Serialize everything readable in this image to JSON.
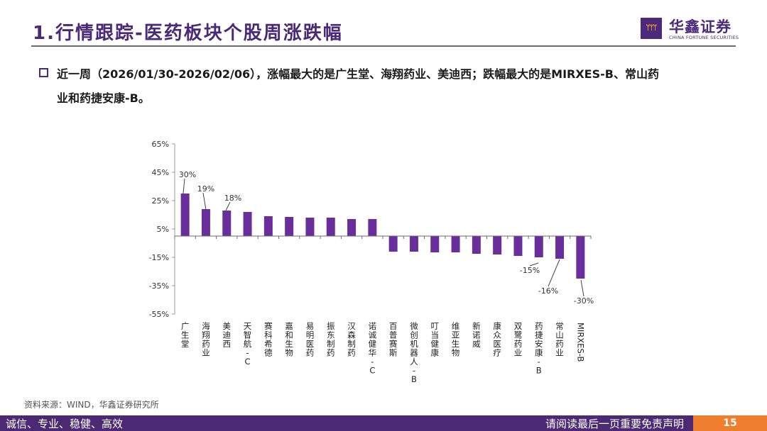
{
  "header": {
    "title": "1.行情跟踪-医药板块个股周涨跌幅",
    "logo_icon": "three-figures-logo-icon",
    "logo_mark": "ᛘᛘᛘ",
    "logo_cn": "华鑫证券",
    "logo_en": "CHINA FORTUNE SECURITIES"
  },
  "summary": {
    "bullet_icon": "hollow-square-bullet-icon",
    "text": "近一周（2026/01/30-2026/02/06），涨幅最大的是广生堂、海翔药业、美迪西；跌幅最大的是MIRXES-B、常山药业和药捷安康-B。"
  },
  "chart_data": {
    "type": "bar",
    "title": "",
    "xlabel": "",
    "ylabel": "",
    "ylim": [
      -55,
      65
    ],
    "yticks": [
      65,
      45,
      25,
      5,
      -15,
      -35,
      -55
    ],
    "ytick_labels": [
      "65%",
      "45%",
      "25%",
      "5%",
      "-15%",
      "-35%",
      "-55%"
    ],
    "grid": false,
    "legend": "none",
    "color": "#6a2d9c",
    "categories": [
      "广生堂",
      "海翔药业",
      "美迪西",
      "天智航-C",
      "赛科希德",
      "嘉和生物",
      "易明医药",
      "振东制药",
      "汉森制药",
      "诺诚健华-C",
      "百普赛斯",
      "微创机器人-B",
      "叮当健康",
      "维亚生物",
      "新诺威",
      "康众医疗",
      "双鹭药业",
      "药捷安康-B",
      "常山药业",
      "MIRXES-B"
    ],
    "values": [
      30,
      19,
      18,
      17,
      14,
      13.5,
      13,
      13,
      12,
      12,
      -11,
      -11,
      -11.5,
      -11.5,
      -12.5,
      -13,
      -14,
      -15,
      -16,
      -30
    ],
    "data_labels": [
      {
        "index": 0,
        "text": "30%"
      },
      {
        "index": 1,
        "text": "19%"
      },
      {
        "index": 2,
        "text": "18%"
      },
      {
        "index": 17,
        "text": "-15%"
      },
      {
        "index": 18,
        "text": "-16%"
      },
      {
        "index": 19,
        "text": "-30%"
      }
    ]
  },
  "source": "资料来源：WIND，华鑫证券研究所",
  "footer": {
    "slogan": "诚信、专业、稳健、高效",
    "disclaimer": "请阅读最后一页重要免责声明",
    "page": "15"
  }
}
